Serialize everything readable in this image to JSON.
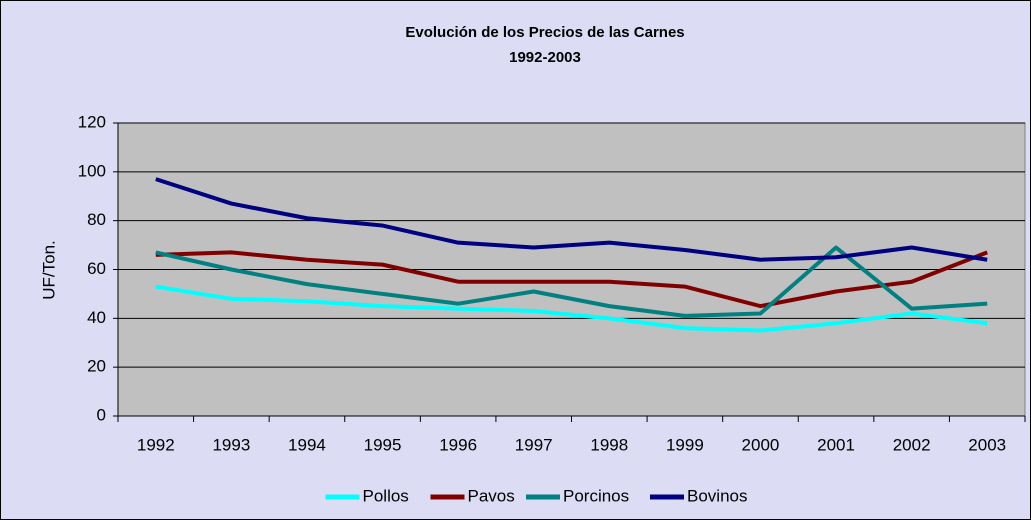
{
  "chart_data": {
    "type": "line",
    "title": "Evolución de los Precios de las Carnes",
    "subtitle": "1992-2003",
    "y_label": "UF/Ton.",
    "categories": [
      "1992",
      "1993",
      "1994",
      "1995",
      "1996",
      "1997",
      "1998",
      "1999",
      "2000",
      "2001",
      "2002",
      "2003"
    ],
    "series": [
      {
        "name": "Pollos",
        "color": "#00ffff",
        "values": [
          53,
          48,
          47,
          45,
          44,
          43,
          40,
          36,
          35,
          38,
          42,
          38
        ]
      },
      {
        "name": "Pavos",
        "color": "#800000",
        "values": [
          66,
          67,
          64,
          62,
          55,
          55,
          55,
          53,
          45,
          51,
          55,
          67
        ]
      },
      {
        "name": "Porcinos",
        "color": "#008080",
        "values": [
          67,
          60,
          54,
          50,
          46,
          51,
          45,
          41,
          42,
          69,
          44,
          46
        ]
      },
      {
        "name": "Bovinos",
        "color": "#000080",
        "values": [
          97,
          87,
          81,
          78,
          71,
          69,
          71,
          68,
          64,
          65,
          69,
          64
        ]
      }
    ],
    "ylim": [
      0,
      120
    ],
    "yticks": [
      0,
      20,
      40,
      60,
      80,
      100,
      120
    ],
    "grid": true,
    "legend": "bottom"
  }
}
